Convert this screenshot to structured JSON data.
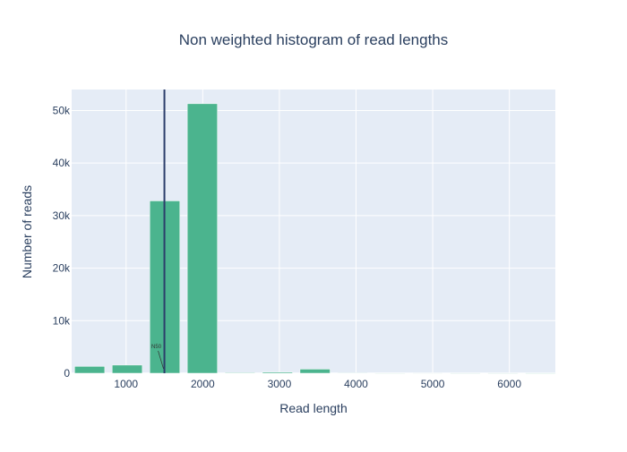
{
  "chart_data": {
    "type": "bar",
    "title": "Non weighted histogram of read lengths",
    "xlabel": "Read length",
    "ylabel": "Number of reads",
    "xlim": [
      290,
      6600
    ],
    "ylim": [
      0,
      54000
    ],
    "x_ticks": [
      1000,
      2000,
      3000,
      4000,
      5000,
      6000
    ],
    "y_ticks": [
      0,
      10000,
      20000,
      30000,
      40000,
      50000
    ],
    "y_tick_labels": [
      "0",
      "10k",
      "20k",
      "30k",
      "40k",
      "50k"
    ],
    "grid": true,
    "bin_width": 490,
    "bins": [
      {
        "center": 525,
        "value": 1300
      },
      {
        "center": 1015,
        "value": 1550
      },
      {
        "center": 1505,
        "value": 32800
      },
      {
        "center": 1995,
        "value": 51300
      },
      {
        "center": 2485,
        "value": 120
      },
      {
        "center": 2975,
        "value": 200
      },
      {
        "center": 3465,
        "value": 780
      },
      {
        "center": 3955,
        "value": 60
      },
      {
        "center": 4445,
        "value": 40
      },
      {
        "center": 4935,
        "value": 50
      },
      {
        "center": 5425,
        "value": 30
      },
      {
        "center": 5915,
        "value": 30
      },
      {
        "center": 6405,
        "value": 20
      }
    ],
    "bar_color": "#4bb48e",
    "n50": {
      "x": 1500,
      "label": "N50",
      "color": "#2c3e6b"
    }
  }
}
